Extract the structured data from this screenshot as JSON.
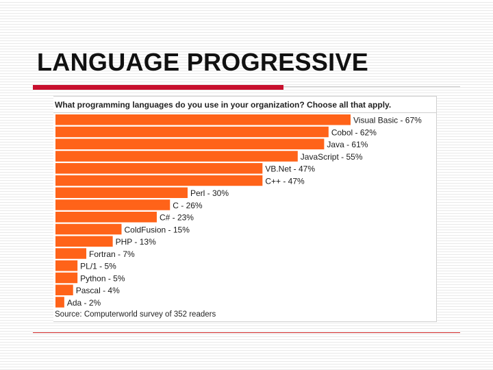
{
  "slide": {
    "title": "LANGUAGE PROGRESSIVE"
  },
  "chart_data": {
    "type": "bar",
    "orientation": "horizontal",
    "title": "What programming languages do you use in your organization? Choose all that apply.",
    "categories": [
      "Visual Basic",
      "Cobol",
      "Java",
      "JavaScript",
      "VB.Net",
      "C++",
      "Perl",
      "C",
      "C#",
      "ColdFusion",
      "PHP",
      "Fortran",
      "PL/1",
      "Python",
      "Pascal",
      "Ada"
    ],
    "values": [
      67,
      62,
      61,
      55,
      47,
      47,
      30,
      26,
      23,
      15,
      13,
      7,
      5,
      5,
      4,
      2
    ],
    "labels": [
      "Visual Basic - 67%",
      "Cobol - 62%",
      "Java - 61%",
      "JavaScript - 55%",
      "VB.Net - 47%",
      "C++ - 47%",
      "Perl - 30%",
      "C - 26%",
      "C# - 23%",
      "ColdFusion - 15%",
      "PHP - 13%",
      "Fortran - 7%",
      "PL/1 - 5%",
      "Python - 5%",
      "Pascal - 4%",
      "Ada - 2%"
    ],
    "unit": "%",
    "xlim": [
      0,
      67
    ],
    "bar_color": "#ff6319",
    "source": "Source: Computerworld survey of 352 readers"
  }
}
